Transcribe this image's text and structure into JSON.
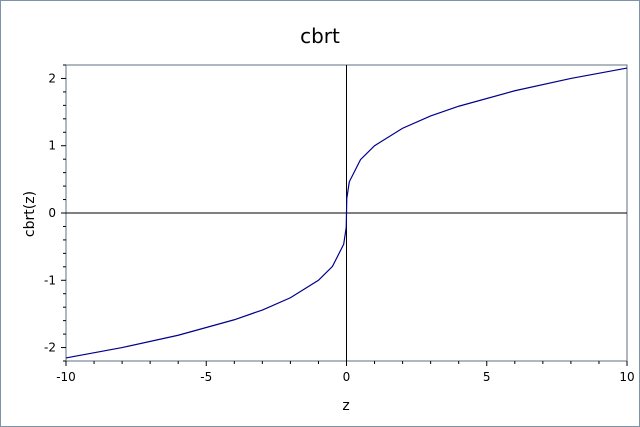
{
  "chart_data": {
    "type": "line",
    "title": "cbrt",
    "xlabel": "z",
    "ylabel": "cbrt(z)",
    "xlim": [
      -10,
      10
    ],
    "ylim": [
      -2.2,
      2.2
    ],
    "xticks": [
      -10,
      -5,
      0,
      5,
      10
    ],
    "yticks": [
      -2,
      -1,
      0,
      1,
      2
    ],
    "xtick_labels": [
      "-10",
      "-5",
      "0",
      "5",
      "10"
    ],
    "ytick_labels": [
      "-2",
      "-1",
      "0",
      "1",
      "2"
    ],
    "grid": false,
    "legend": "none",
    "series": [
      {
        "color": "#00008b",
        "x": [
          -10,
          -8,
          -6,
          -4,
          -3,
          -2,
          -1,
          -0.5,
          -0.1,
          -0.01,
          0,
          0.01,
          0.1,
          0.5,
          1,
          2,
          3,
          4,
          6,
          8,
          10
        ],
        "y": [
          -2.154,
          -2.0,
          -1.817,
          -1.587,
          -1.442,
          -1.26,
          -1.0,
          -0.794,
          -0.464,
          -0.215,
          0,
          0.215,
          0.464,
          0.794,
          1.0,
          1.26,
          1.442,
          1.587,
          1.817,
          2.0,
          2.154
        ]
      }
    ]
  }
}
